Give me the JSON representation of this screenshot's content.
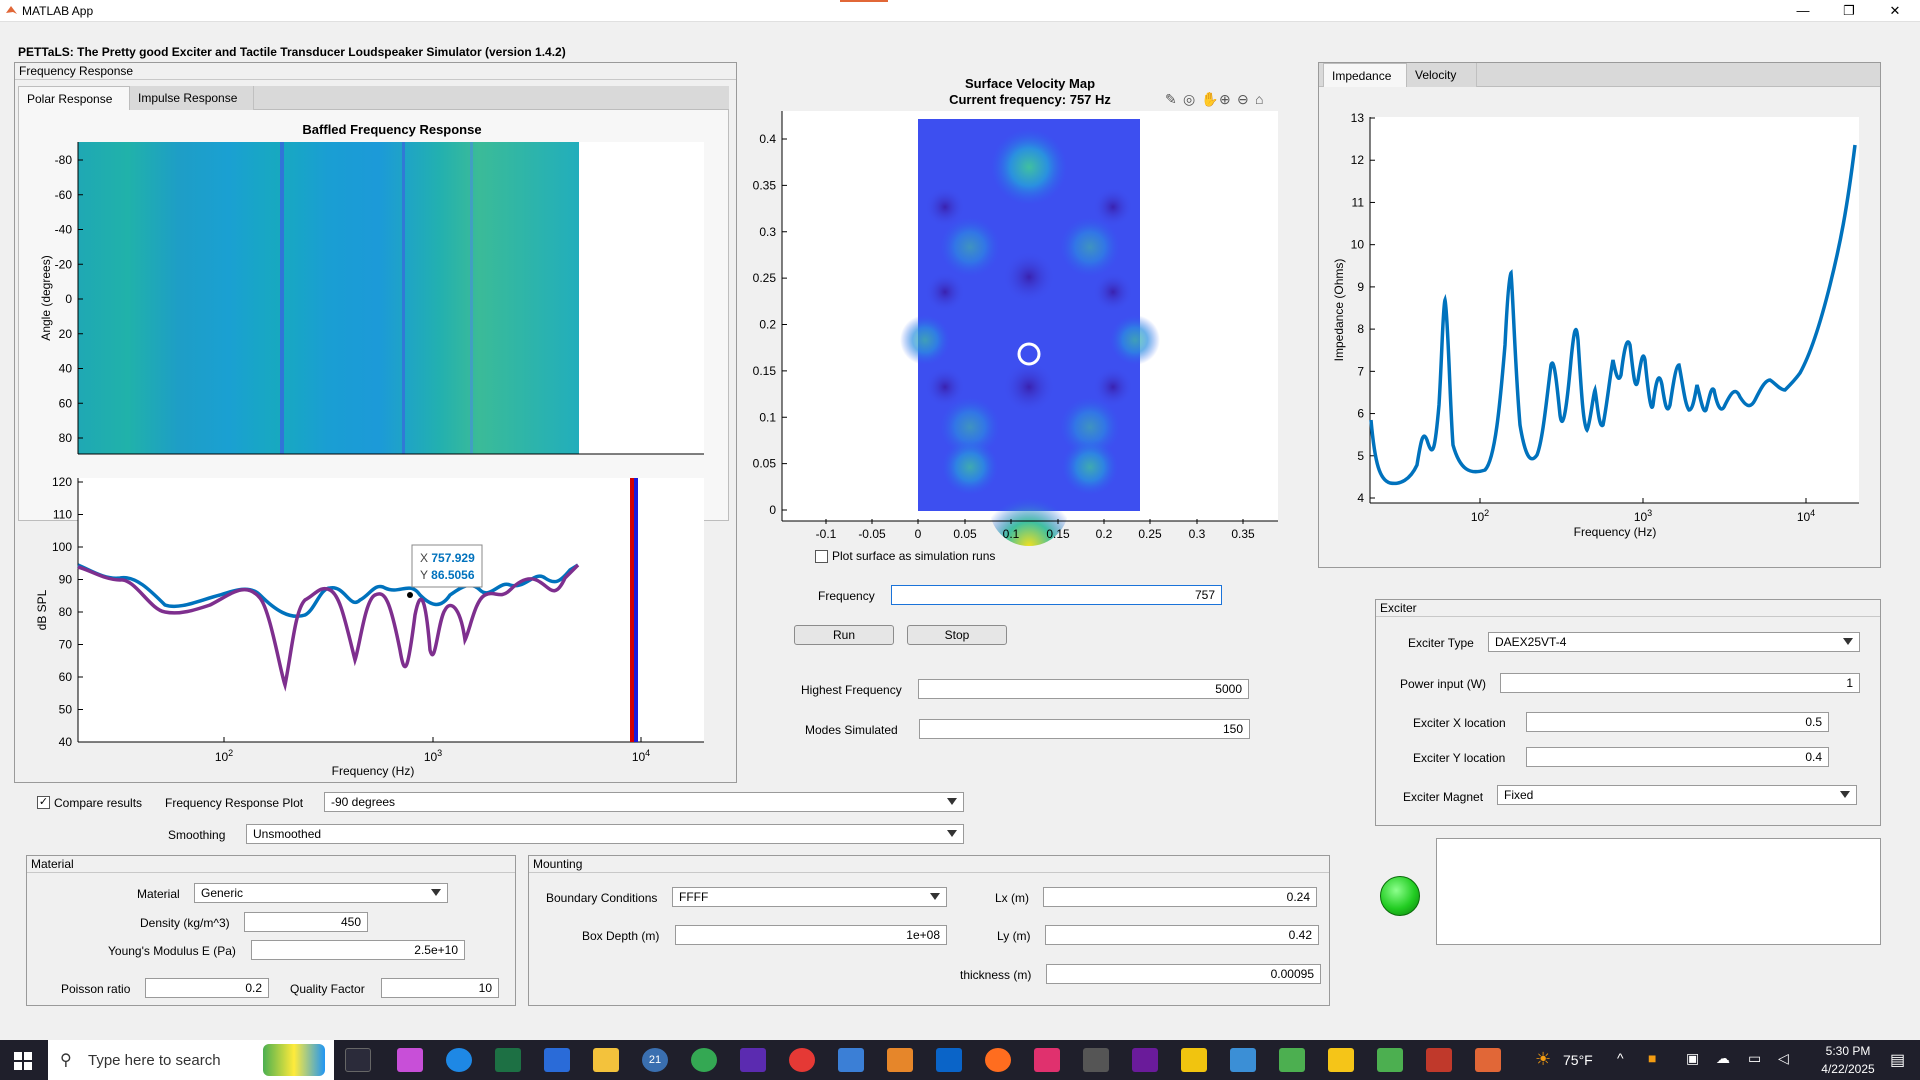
{
  "window": {
    "title": "MATLAB App",
    "minimize": "—",
    "restore": "❐",
    "close": "✕"
  },
  "app_title": "PETTaLS: The Pretty good Exciter and Tactile Transducer Loudspeaker Simulator (version 1.4.2)",
  "freq_panel": {
    "title": "Frequency Response",
    "tabs": [
      "Polar Response",
      "Impulse Response"
    ]
  },
  "polar_plot": {
    "title": "Baffled Frequency Response",
    "ylabel": "Angle (degrees)",
    "yticks": [
      "-80",
      "-60",
      "-40",
      "-20",
      "0",
      "20",
      "40",
      "60",
      "80"
    ]
  },
  "spl_plot": {
    "ylabel": "dB SPL",
    "xlabel": "Frequency (Hz)",
    "yticks": [
      "120",
      "110",
      "100",
      "90",
      "80",
      "70",
      "60",
      "50",
      "40"
    ],
    "xticks": [
      "10",
      "10",
      "10"
    ],
    "xticks_exp": [
      "2",
      "3",
      "4"
    ],
    "datatip": {
      "x_label": "X",
      "x_value": "757.929",
      "y_label": "Y",
      "y_value": "86.5056"
    }
  },
  "velocity_map": {
    "title": "Surface Velocity Map",
    "subtitle": "Current frequency: 757 Hz",
    "yticks": [
      "0.4",
      "0.35",
      "0.3",
      "0.25",
      "0.2",
      "0.15",
      "0.1",
      "0.05",
      "0"
    ],
    "xticks": [
      "-0.1",
      "-0.05",
      "0",
      "0.05",
      "0.1",
      "0.15",
      "0.2",
      "0.25",
      "0.3",
      "0.35"
    ]
  },
  "plot_surface_label": "Plot surface as simulation runs",
  "frequency": {
    "label": "Frequency",
    "value": "757"
  },
  "run_label": "Run",
  "stop_label": "Stop",
  "highest_freq": {
    "label": "Highest Frequency",
    "value": "5000"
  },
  "modes": {
    "label": "Modes Simulated",
    "value": "150"
  },
  "right_tabs": [
    "Impedance",
    "Velocity"
  ],
  "impedance_plot": {
    "ylabel": "Impedance (Ohms)",
    "xlabel": "Frequency (Hz)",
    "yticks": [
      "13",
      "12",
      "11",
      "10",
      "9",
      "8",
      "7",
      "6",
      "5",
      "4"
    ],
    "xticks": [
      "10",
      "10",
      "10"
    ],
    "xticks_exp": [
      "2",
      "3",
      "4"
    ]
  },
  "exciter": {
    "title": "Exciter",
    "type_label": "Exciter Type",
    "type_value": "DAEX25VT-4",
    "power_label": "Power input (W)",
    "power_value": "1",
    "x_label": "Exciter X location",
    "x_value": "0.5",
    "y_label": "Exciter Y location",
    "y_value": "0.4",
    "magnet_label": "Exciter Magnet",
    "magnet_value": "Fixed"
  },
  "compare_label": "Compare results",
  "freq_plot_label": "Frequency Response Plot",
  "freq_plot_value": "-90 degrees",
  "smoothing_label": "Smoothing",
  "smoothing_value": "Unsmoothed",
  "material": {
    "title": "Material",
    "material_label": "Material",
    "material_value": "Generic",
    "density_label": "Density (kg/m^3)",
    "density_value": "450",
    "youngs_label": "Young's Modulus E (Pa)",
    "youngs_value": "2.5e+10",
    "poisson_label": "Poisson ratio",
    "poisson_value": "0.2",
    "q_label": "Quality Factor",
    "q_value": "10"
  },
  "mounting": {
    "title": "Mounting",
    "bc_label": "Boundary Conditions",
    "bc_value": "FFFF",
    "box_label": "Box Depth (m)",
    "box_value": "1e+08",
    "lx_label": "Lx (m)",
    "lx_value": "0.24",
    "ly_label": "Ly (m)",
    "ly_value": "0.42",
    "thick_label": "thickness (m)",
    "thick_value": "0.00095"
  },
  "status_color": "#22cc22",
  "taskbar": {
    "search_placeholder": "Type here to search",
    "weather": "75°F",
    "time": "5:30 PM",
    "date": "4/22/2025",
    "notif": "21"
  },
  "colors": {
    "accent": "#0072bd",
    "purple": "#7e2f8e",
    "field_border": "#9a9a9a"
  }
}
